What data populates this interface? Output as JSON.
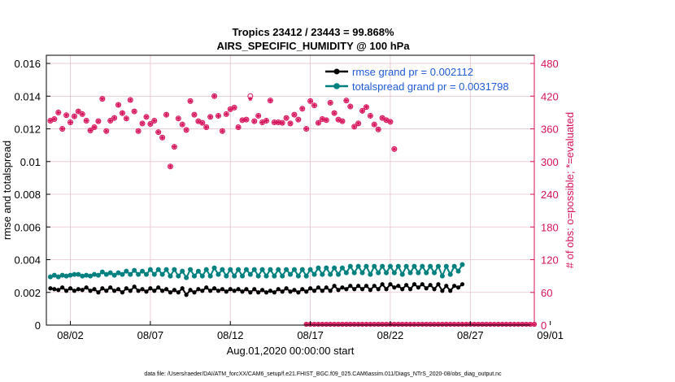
{
  "chart_data": {
    "type": "line",
    "title": "Tropics 23412 / 23443 = 99.868%",
    "subtitle": "AIRS_SPECIFIC_HUMIDITY @ 100 hPa",
    "xlabel": "Aug.01,2020 00:00:00 start",
    "ylabel": "rmse and totalspread",
    "ylabel_right": "# of obs: o=possible; *=evaluated",
    "footer": "data file: /Users/raeder/DAI/ATM_forcXX/CAM6_setup/f.e21.FHIST_BGC.f09_025.CAM6assim.011/Diags_NTrS_2020-08/obs_diag_output.nc",
    "xlim": [
      0.5,
      31.0
    ],
    "ylim": [
      0,
      0.0165
    ],
    "ylim_right": [
      0,
      495
    ],
    "x_ticks": [
      2,
      7,
      12,
      17,
      22,
      27,
      32
    ],
    "x_tick_labels": [
      "08/02",
      "08/07",
      "08/12",
      "08/17",
      "08/22",
      "08/27",
      "09/01"
    ],
    "y_ticks": [
      0,
      0.002,
      0.004,
      0.006,
      0.008,
      0.01,
      0.012,
      0.014,
      0.016
    ],
    "y_tick_labels": [
      "0",
      "0.002",
      "0.004",
      "0.006",
      "0.008",
      "0.01",
      "0.012",
      "0.014",
      "0.016"
    ],
    "y_ticks_right": [
      0,
      60,
      120,
      180,
      240,
      300,
      360,
      420,
      480
    ],
    "y_tick_labels_right": [
      "0",
      "60",
      "120",
      "180",
      "240",
      "300",
      "360",
      "420",
      "480"
    ],
    "grid": true,
    "legend_position": "top-right",
    "obs_x_start": 0.75,
    "obs_x_step": 0.25,
    "data_end_x": 16.5,
    "series": [
      {
        "name": "rmse grand pr = 0.002112",
        "color": "#000000",
        "marker": "star",
        "x_start": 0.75,
        "x_step": 0.25,
        "values": [
          0.00225,
          0.0022,
          0.00215,
          0.0023,
          0.0021,
          0.00225,
          0.0021,
          0.0022,
          0.00215,
          0.0023,
          0.0021,
          0.0022,
          0.002,
          0.00225,
          0.0021,
          0.0023,
          0.0021,
          0.0022,
          0.002,
          0.00225,
          0.0021,
          0.00235,
          0.0021,
          0.0022,
          0.00205,
          0.00225,
          0.0021,
          0.0023,
          0.0021,
          0.0022,
          0.002,
          0.00215,
          0.002,
          0.00225,
          0.00185,
          0.00215,
          0.002,
          0.0022,
          0.0021,
          0.0023,
          0.0021,
          0.00225,
          0.0021,
          0.0022,
          0.00205,
          0.0022,
          0.0021,
          0.0022,
          0.00205,
          0.0022,
          0.002,
          0.0022,
          0.002,
          0.00215,
          0.002,
          0.0021,
          0.002,
          0.0022,
          0.00205,
          0.00225,
          0.00205,
          0.00215,
          0.002,
          0.0022,
          0.00205,
          0.00225,
          0.0021,
          0.0023,
          0.0021,
          0.0023,
          0.0021,
          0.0024,
          0.00215,
          0.0023,
          0.0022,
          0.0024,
          0.0022,
          0.0024,
          0.0022,
          0.0024,
          0.00215,
          0.0024,
          0.0022,
          0.0025,
          0.0022,
          0.0025,
          0.0023,
          0.0024,
          0.0022,
          0.00245,
          0.0022,
          0.0025,
          0.0023,
          0.0025,
          0.00225,
          0.00245,
          0.0022,
          0.0025,
          0.0021,
          0.0024,
          0.0021,
          0.0024,
          0.0023,
          0.0025
        ]
      },
      {
        "name": "totalspread grand pr = 0.0031798",
        "color": "#00807f",
        "marker": "circle",
        "x_start": 0.75,
        "x_step": 0.25,
        "values": [
          0.00295,
          0.00305,
          0.00295,
          0.00305,
          0.003,
          0.00305,
          0.0031,
          0.0031,
          0.003,
          0.00305,
          0.003,
          0.0031,
          0.00305,
          0.00325,
          0.0031,
          0.0032,
          0.00305,
          0.0032,
          0.0031,
          0.0033,
          0.0031,
          0.00335,
          0.0031,
          0.0033,
          0.0031,
          0.0034,
          0.0031,
          0.0034,
          0.0031,
          0.0034,
          0.003,
          0.0034,
          0.003,
          0.0033,
          0.0029,
          0.0034,
          0.003,
          0.0033,
          0.003,
          0.0034,
          0.003,
          0.0035,
          0.0031,
          0.0034,
          0.003,
          0.0034,
          0.003,
          0.0034,
          0.003,
          0.0034,
          0.0031,
          0.0034,
          0.003,
          0.0034,
          0.003,
          0.0034,
          0.003,
          0.0034,
          0.003,
          0.0034,
          0.0031,
          0.0034,
          0.003,
          0.0034,
          0.003,
          0.0034,
          0.0031,
          0.0035,
          0.0031,
          0.0035,
          0.0031,
          0.0035,
          0.0031,
          0.0035,
          0.0032,
          0.0036,
          0.0032,
          0.0036,
          0.0032,
          0.0036,
          0.0031,
          0.0036,
          0.0032,
          0.0036,
          0.0032,
          0.0036,
          0.0032,
          0.0036,
          0.0031,
          0.0036,
          0.0032,
          0.0036,
          0.0032,
          0.0036,
          0.0032,
          0.0036,
          0.0032,
          0.0036,
          0.003,
          0.0036,
          0.0031,
          0.0036,
          0.0033,
          0.0037
        ]
      }
    ],
    "obs_counts": {
      "name": "# of obs",
      "color": "#d6105a",
      "daily_possible": [
        375,
        378,
        390,
        360,
        385,
        372,
        383,
        392,
        387,
        375,
        357,
        363,
        374,
        415,
        356,
        375,
        380,
        404,
        389,
        379,
        413,
        392,
        356,
        370,
        382,
        369,
        375,
        354,
        344,
        386,
        291,
        327,
        379,
        368,
        358,
        411,
        386,
        374,
        371,
        363,
        382,
        420,
        384,
        356,
        387,
        396,
        399,
        363,
        376,
        377,
        420,
        374,
        384,
        372,
        375,
        412,
        372,
        372,
        371,
        380,
        370,
        386,
        377,
        397,
        360,
        411,
        403,
        371,
        378,
        376,
        408,
        389,
        377,
        374,
        412,
        401,
        364,
        370,
        393,
        400,
        384,
        368,
        359,
        380,
        376,
        373,
        323
      ],
      "daily_evaluated": [
        375,
        378,
        390,
        360,
        385,
        372,
        383,
        392,
        387,
        375,
        357,
        363,
        374,
        415,
        356,
        375,
        380,
        404,
        389,
        379,
        413,
        392,
        356,
        370,
        382,
        369,
        375,
        354,
        344,
        386,
        291,
        327,
        379,
        368,
        358,
        411,
        386,
        374,
        371,
        363,
        382,
        420,
        384,
        356,
        387,
        396,
        399,
        363,
        376,
        377,
        415,
        374,
        384,
        372,
        375,
        412,
        372,
        372,
        371,
        380,
        370,
        386,
        377,
        397,
        360,
        411,
        403,
        371,
        378,
        376,
        408,
        389,
        377,
        374,
        412,
        401,
        364,
        370,
        393,
        400,
        384,
        368,
        359,
        380,
        376,
        373,
        323
      ],
      "zero_start_x": 16.75,
      "zero_end_x": 31.0,
      "zero_value": 0
    }
  }
}
